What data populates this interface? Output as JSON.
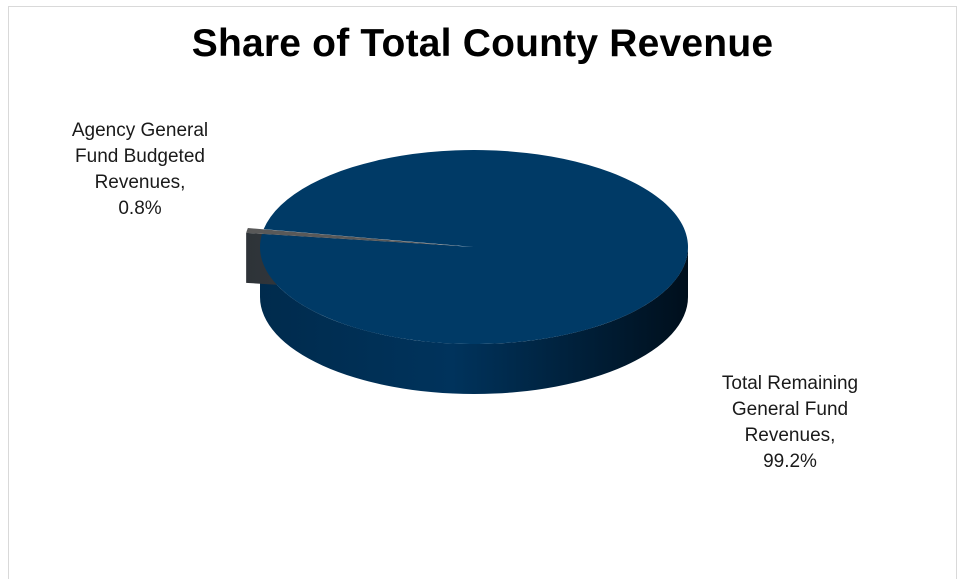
{
  "chart_data": {
    "type": "pie",
    "title": "Share of Total County Revenue",
    "slices": [
      {
        "label_lines": [
          "Agency General",
          "Fund Budgeted",
          "Revenues,",
          "0.8%"
        ],
        "value": 0.8,
        "color": "#595959"
      },
      {
        "label_lines": [
          "Total Remaining",
          "General Fund",
          "Revenues,",
          "99.2%"
        ],
        "value": 99.2,
        "color": "#003a66"
      }
    ]
  }
}
